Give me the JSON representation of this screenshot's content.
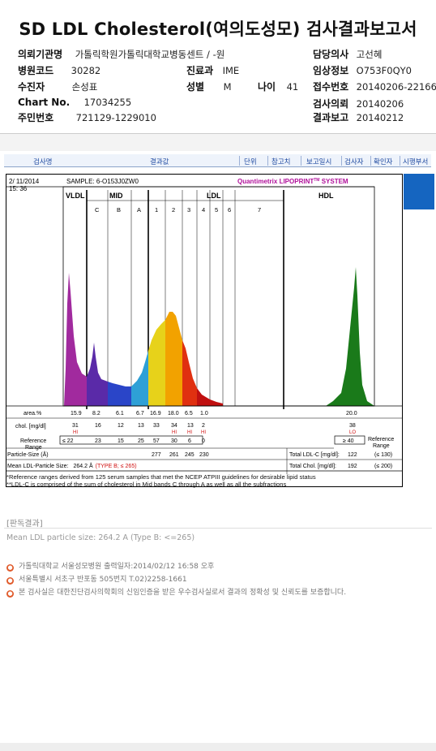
{
  "title": "SD LDL Cholesterol(여의도성모) 검사결과보고서",
  "info": {
    "inst_label": "의뢰기관명",
    "inst_value": "가톨릭학원가톨릭대학교병동센트 / -원",
    "doctor_label": "담당의사",
    "doctor_value": "고선혜",
    "hosp_code_label": "병원코드",
    "hosp_code_value": "30282",
    "dept_label": "진료과",
    "dept_value": "IME",
    "clinical_label": "임상정보",
    "clinical_value": "O753F0QY0",
    "patient_label": "수진자",
    "patient_value": "손성표",
    "sex_label": "성별",
    "sex_value": "M",
    "age_label": "나이",
    "age_value": "41",
    "receipt_label": "접수번호",
    "receipt_value": "20140206-22166",
    "chart_label": "Chart No.",
    "chart_value": "17034255",
    "request_label": "검사의뢰",
    "request_value": "20140206",
    "rrn_label": "주민번호",
    "rrn_value": "721129-1229010",
    "report_label": "결과보고",
    "report_value": "20140212"
  },
  "grid_header": {
    "c1": "검사명",
    "c2": "결과값",
    "c3": "단위",
    "c4": "참고치",
    "c5": "보고일시",
    "c6": "검사자",
    "c7": "확인자",
    "c8": "시행부서"
  },
  "report": {
    "date": "2/ 11/2014",
    "time": "15: 36",
    "sample": "SAMPLE:  6-O153J0ZW0",
    "brand": "Quantimetrix LIPOPRINT",
    "brand_tm": "TM",
    "brand_sys": " SYSTEM",
    "vldl": "VLDL",
    "mid": "MID",
    "ldl": "LDL",
    "hdl": "HDL",
    "mid_bands": [
      "C",
      "B",
      "A"
    ],
    "ldl_bands": [
      "1",
      "2",
      "3",
      "4",
      "5",
      "6",
      "7"
    ],
    "area_label": "area.%",
    "area_values": [
      "15.9",
      "8.2",
      "6.1",
      "6.7",
      "16.9",
      "18.0",
      "6.5",
      "1.0"
    ],
    "area_hdl": "20.0",
    "chol_label": "chol. [mg/dl]",
    "chol_values": [
      "31",
      "16",
      "12",
      "13",
      "33",
      "34",
      "13",
      "2"
    ],
    "chol_flags": [
      "HI",
      "",
      "",
      "",
      "",
      "HI",
      "HI",
      "HI"
    ],
    "chol_hdl": "38",
    "chol_hdl_flag": "LO",
    "ref_label_1": "Reference",
    "ref_label_2": "Range",
    "ref_values": [
      "≤ 22",
      "23",
      "15",
      "25",
      "57",
      "30",
      "6",
      "0"
    ],
    "ref_hdl": "≥ 40",
    "ref_side_1": "Reference",
    "ref_side_2": "Range",
    "ps_label": "Particle-Size (Å)",
    "ps_values": [
      "277",
      "261",
      "245",
      "230"
    ],
    "total_ldl_label": "Total LDL-C [mg/dl]:",
    "total_ldl_value": "122",
    "total_ldl_ref": "(≤ 130)",
    "mean_label": "Mean LDL-Particle Size:",
    "mean_value": "264.2 Å",
    "mean_type": "(TYPE B; ≤ 265)",
    "total_chol_label": "Total Chol. [mg/dl]:",
    "total_chol_value": "192",
    "total_chol_ref": "(≤ 200)"
  },
  "notes": {
    "n1": "*Reference ranges derived from 125 serum samples that met the NCEP ATPIII guidelines for desirable lipid status",
    "n2": "**LDL-C is comprised of the sum of cholesterol in Mid bands C through A as well as all the subfractions"
  },
  "result_section": {
    "header": "[판독결과]",
    "text": "Mean LDL particle size: 264.2 A (Type B: <=265)"
  },
  "footer": {
    "f1": "가톨릭대학교 서울성모병원        출력일자:2014/02/12 16:58 오후",
    "f2": "서울특별시 서초구 반포동 505번지 T.02)2258-1661",
    "f3": "본 검사실은 대한진단검사의학회의 신임인증을 받은 우수검사실로서 결과의 정확성 및 신뢰도를 보증합니다."
  },
  "chart_data": {
    "type": "area",
    "series": [
      {
        "name": "VLDL",
        "color": "#a12a9e",
        "peak_area_pct": 15.9
      },
      {
        "name": "MID C",
        "color": "#5a2aa8",
        "peak_area_pct": 8.2
      },
      {
        "name": "MID B",
        "color": "#2a45c8",
        "peak_area_pct": 6.1
      },
      {
        "name": "MID A",
        "color": "#2ea0d6",
        "peak_area_pct": 6.7
      },
      {
        "name": "LDL 1",
        "color": "#e7d21a",
        "peak_area_pct": 16.9
      },
      {
        "name": "LDL 2",
        "color": "#f2a200",
        "peak_area_pct": 18.0
      },
      {
        "name": "LDL 3",
        "color": "#e03010",
        "peak_area_pct": 6.5
      },
      {
        "name": "LDL 4",
        "color": "#c01010",
        "peak_area_pct": 1.0
      },
      {
        "name": "HDL",
        "color": "#1a7a1a",
        "peak_area_pct": 20.0
      }
    ]
  }
}
